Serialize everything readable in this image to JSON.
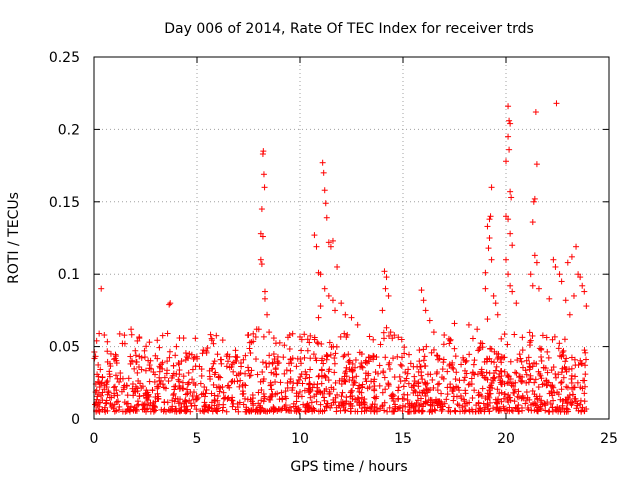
{
  "chart_data": {
    "type": "scatter",
    "title": "Day 006 of 2014, Rate Of TEC Index for receiver trds",
    "xlabel": "GPS time / hours",
    "ylabel": "ROTI / TECUs",
    "xlim": [
      0,
      25
    ],
    "ylim": [
      0,
      0.25
    ],
    "x_ticks": [
      "0",
      "5",
      "10",
      "15",
      "20",
      "25"
    ],
    "y_ticks": [
      "0",
      "0.05",
      "0.1",
      "0.15",
      "0.2",
      "0.25"
    ],
    "grid": true,
    "marker": "+",
    "color": "#ff0000",
    "series": [
      {
        "name": "ROTI",
        "points": [
          [
            0.25,
            0.059
          ],
          [
            0.35,
            0.09
          ],
          [
            0.5,
            0.058
          ],
          [
            1.5,
            0.052
          ],
          [
            1.8,
            0.062
          ],
          [
            3.7,
            0.08
          ],
          [
            3.65,
            0.079
          ],
          [
            4.0,
            0.05
          ],
          [
            5.8,
            0.052
          ],
          [
            7.5,
            0.058
          ],
          [
            7.9,
            0.062
          ],
          [
            8.1,
            0.128
          ],
          [
            8.15,
            0.145
          ],
          [
            8.2,
            0.183
          ],
          [
            8.22,
            0.185
          ],
          [
            8.25,
            0.169
          ],
          [
            8.28,
            0.16
          ],
          [
            8.1,
            0.11
          ],
          [
            8.15,
            0.107
          ],
          [
            8.2,
            0.126
          ],
          [
            8.3,
            0.088
          ],
          [
            8.3,
            0.083
          ],
          [
            8.4,
            0.072
          ],
          [
            8.0,
            0.062
          ],
          [
            8.5,
            0.06
          ],
          [
            9.5,
            0.058
          ],
          [
            10.7,
            0.127
          ],
          [
            10.8,
            0.119
          ],
          [
            10.9,
            0.101
          ],
          [
            11.0,
            0.1
          ],
          [
            11.1,
            0.177
          ],
          [
            11.15,
            0.17
          ],
          [
            11.2,
            0.158
          ],
          [
            11.25,
            0.149
          ],
          [
            11.3,
            0.139
          ],
          [
            11.4,
            0.122
          ],
          [
            11.5,
            0.119
          ],
          [
            11.6,
            0.123
          ],
          [
            11.8,
            0.105
          ],
          [
            11.2,
            0.09
          ],
          [
            11.4,
            0.085
          ],
          [
            11.6,
            0.082
          ],
          [
            11.0,
            0.078
          ],
          [
            12.0,
            0.08
          ],
          [
            12.2,
            0.072
          ],
          [
            12.5,
            0.07
          ],
          [
            12.8,
            0.065
          ],
          [
            10.9,
            0.07
          ],
          [
            11.7,
            0.075
          ],
          [
            14.1,
            0.102
          ],
          [
            14.2,
            0.098
          ],
          [
            14.15,
            0.09
          ],
          [
            14.3,
            0.085
          ],
          [
            14.0,
            0.075
          ],
          [
            14.2,
            0.063
          ],
          [
            14.4,
            0.06
          ],
          [
            15.9,
            0.089
          ],
          [
            16.0,
            0.082
          ],
          [
            16.1,
            0.075
          ],
          [
            16.3,
            0.068
          ],
          [
            16.5,
            0.06
          ],
          [
            17.0,
            0.058
          ],
          [
            17.5,
            0.066
          ],
          [
            18.2,
            0.065
          ],
          [
            18.6,
            0.062
          ],
          [
            19.0,
            0.101
          ],
          [
            19.1,
            0.133
          ],
          [
            19.2,
            0.138
          ],
          [
            19.25,
            0.14
          ],
          [
            19.3,
            0.16
          ],
          [
            19.2,
            0.125
          ],
          [
            19.15,
            0.118
          ],
          [
            19.3,
            0.11
          ],
          [
            19.4,
            0.085
          ],
          [
            19.5,
            0.08
          ],
          [
            19.0,
            0.09
          ],
          [
            19.6,
            0.072
          ],
          [
            19.1,
            0.069
          ],
          [
            20.0,
            0.178
          ],
          [
            20.1,
            0.216
          ],
          [
            20.15,
            0.206
          ],
          [
            20.2,
            0.204
          ],
          [
            20.1,
            0.195
          ],
          [
            20.15,
            0.186
          ],
          [
            20.2,
            0.157
          ],
          [
            20.25,
            0.153
          ],
          [
            20.0,
            0.14
          ],
          [
            20.1,
            0.138
          ],
          [
            20.2,
            0.128
          ],
          [
            20.3,
            0.12
          ],
          [
            20.0,
            0.11
          ],
          [
            20.1,
            0.1
          ],
          [
            20.2,
            0.092
          ],
          [
            20.3,
            0.088
          ],
          [
            20.5,
            0.08
          ],
          [
            21.3,
            0.136
          ],
          [
            21.35,
            0.15
          ],
          [
            21.4,
            0.152
          ],
          [
            21.5,
            0.176
          ],
          [
            21.45,
            0.212
          ],
          [
            21.4,
            0.113
          ],
          [
            21.5,
            0.108
          ],
          [
            21.2,
            0.1
          ],
          [
            21.3,
            0.092
          ],
          [
            21.6,
            0.09
          ],
          [
            22.1,
            0.083
          ],
          [
            22.3,
            0.11
          ],
          [
            22.4,
            0.105
          ],
          [
            22.45,
            0.218
          ],
          [
            22.6,
            0.1
          ],
          [
            22.7,
            0.095
          ],
          [
            23.0,
            0.108
          ],
          [
            23.2,
            0.112
          ],
          [
            23.4,
            0.119
          ],
          [
            23.5,
            0.1
          ],
          [
            23.6,
            0.098
          ],
          [
            23.7,
            0.092
          ],
          [
            23.8,
            0.088
          ],
          [
            23.3,
            0.085
          ],
          [
            22.9,
            0.082
          ],
          [
            23.1,
            0.072
          ],
          [
            23.9,
            0.078
          ]
        ],
        "baseline_band": {
          "x_range": [
            0,
            23.9
          ],
          "typical_low": 0.005,
          "typical_high": 0.045
        }
      }
    ]
  }
}
